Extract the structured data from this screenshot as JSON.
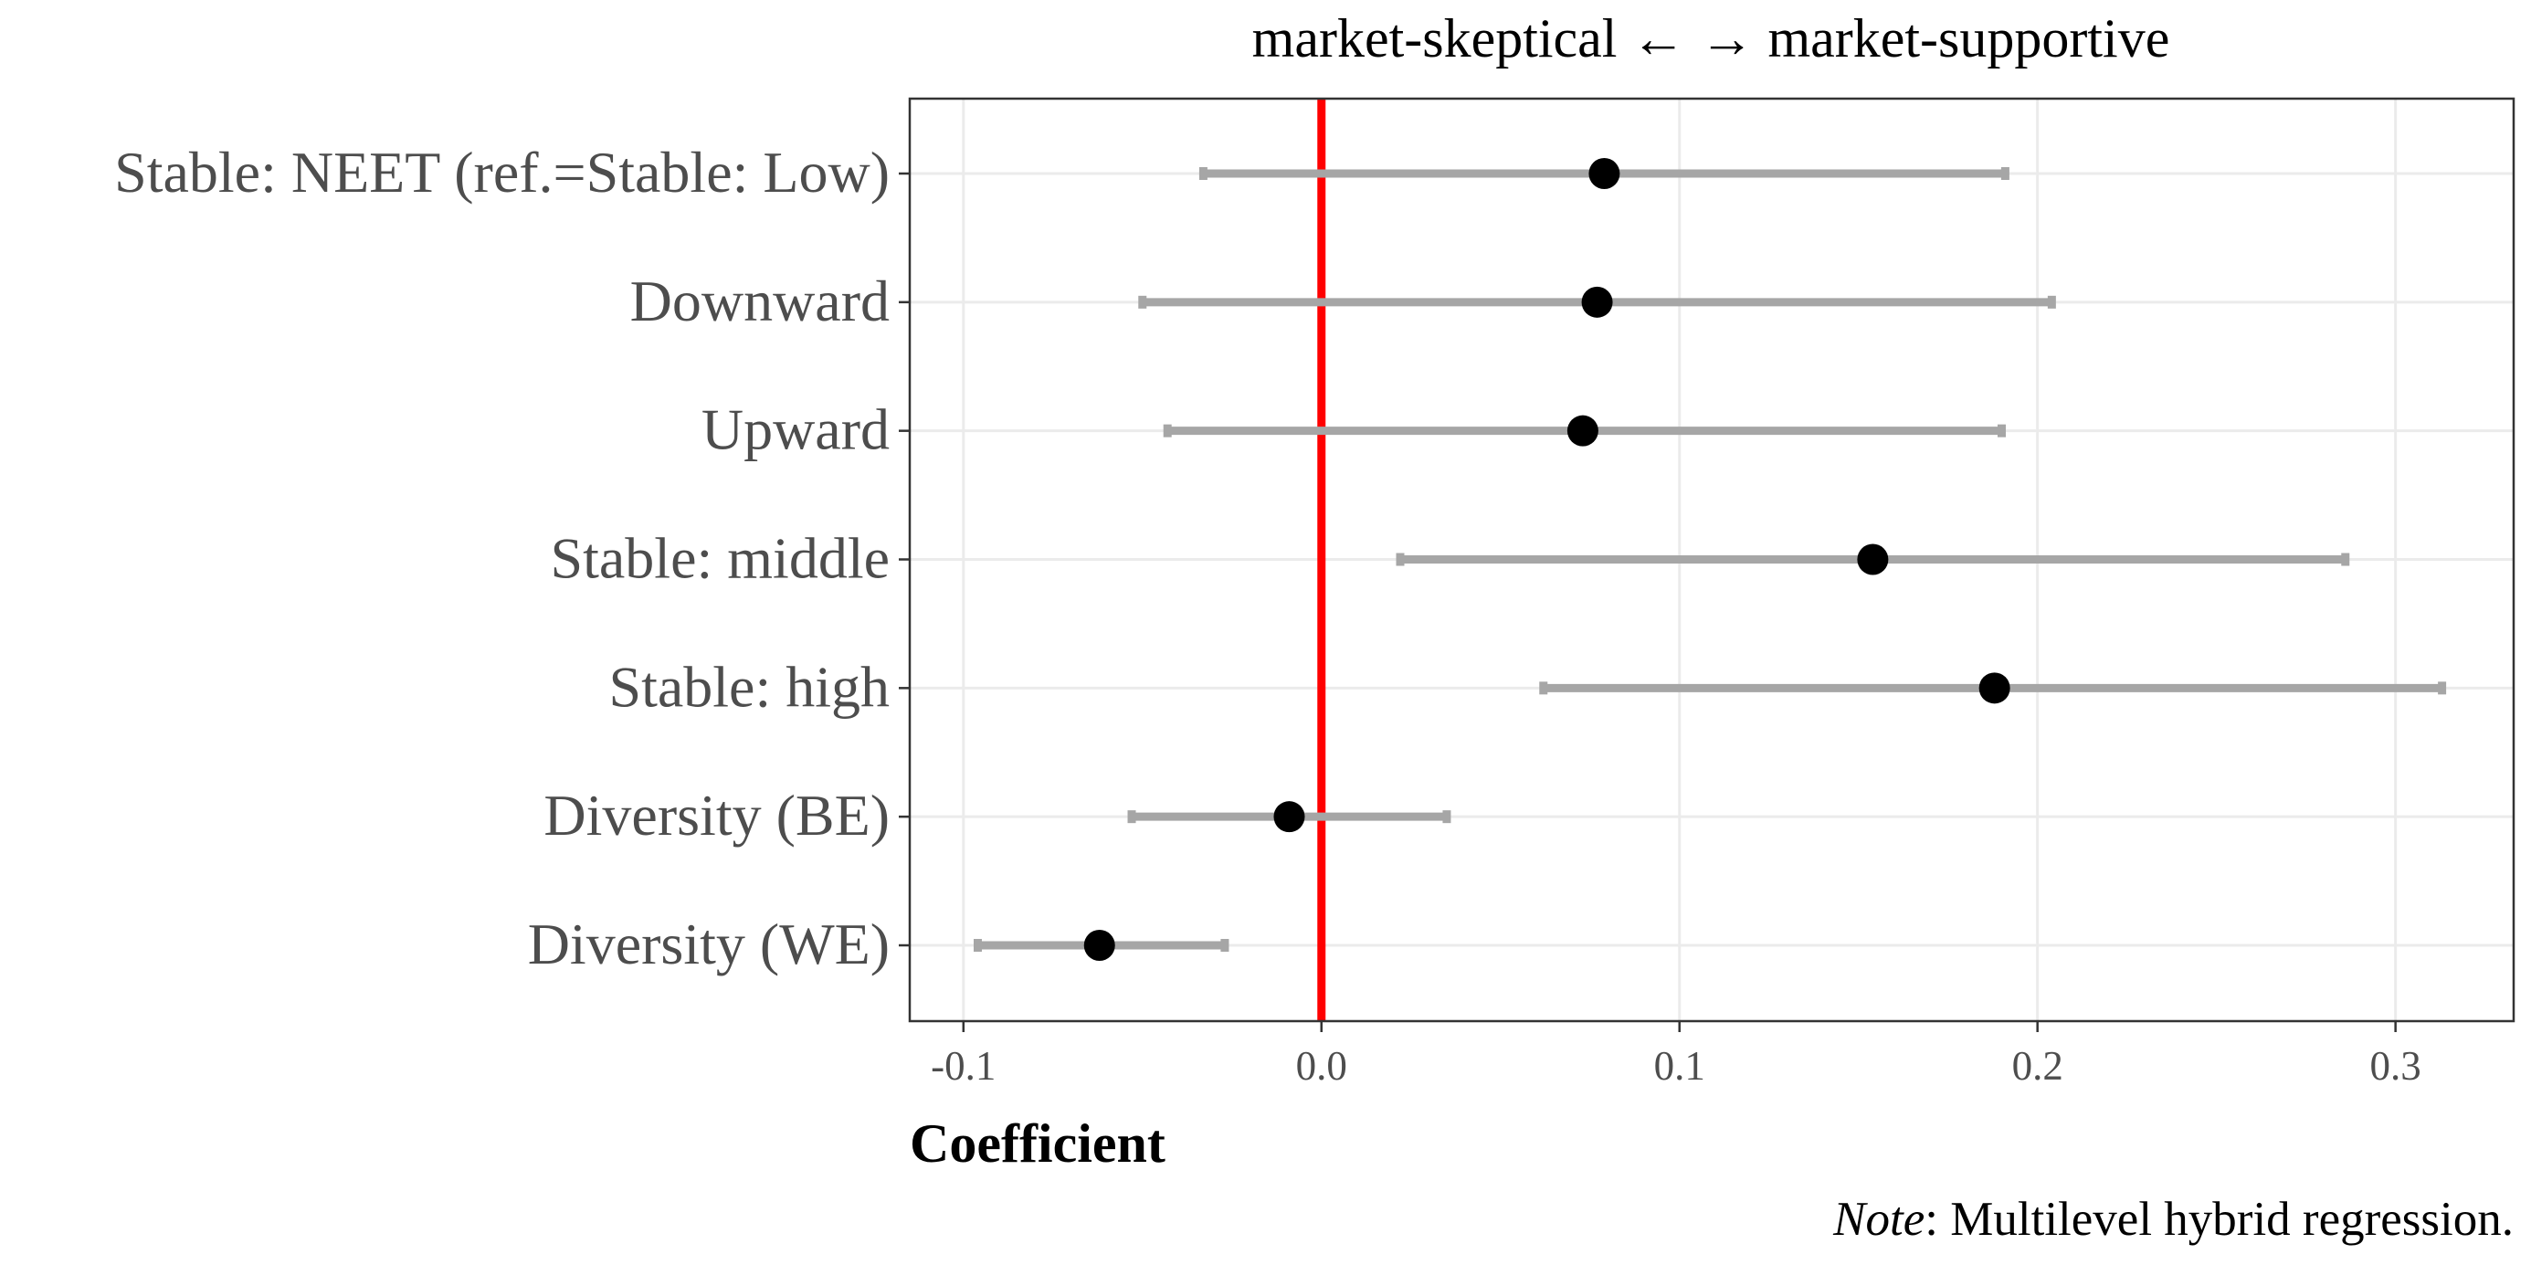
{
  "chart_data": {
    "type": "forest",
    "title": "market-skeptical ← → market-supportive",
    "xlabel": "Coefficient",
    "ylabel": "",
    "note": {
      "italic": "Note",
      "rest": ": Multilevel hybrid regression."
    },
    "xlim": [
      -0.115,
      0.333
    ],
    "xticks": [
      -0.1,
      0.0,
      0.1,
      0.2,
      0.3
    ],
    "xtick_labels": [
      "-0.1",
      "0.0",
      "0.1",
      "0.2",
      "0.3"
    ],
    "reference_line": 0,
    "grid": true,
    "colors": {
      "point": "#000000",
      "ci": "#a6a6a6",
      "reference": "#ff0000",
      "grid": "#ebebeb",
      "axis_text": "#4d4d4d"
    },
    "series": [
      {
        "label": "Stable: NEET (ref.=Stable: Low)",
        "estimate": 0.079,
        "lower": -0.033,
        "upper": 0.191
      },
      {
        "label": "Downward",
        "estimate": 0.077,
        "lower": -0.05,
        "upper": 0.204
      },
      {
        "label": "Upward",
        "estimate": 0.073,
        "lower": -0.043,
        "upper": 0.19
      },
      {
        "label": "Stable: middle",
        "estimate": 0.154,
        "lower": 0.022,
        "upper": 0.286
      },
      {
        "label": "Stable: high",
        "estimate": 0.188,
        "lower": 0.062,
        "upper": 0.313
      },
      {
        "label": "Diversity (BE)",
        "estimate": -0.009,
        "lower": -0.053,
        "upper": 0.035
      },
      {
        "label": "Diversity (WE)",
        "estimate": -0.062,
        "lower": -0.096,
        "upper": -0.027
      }
    ]
  }
}
